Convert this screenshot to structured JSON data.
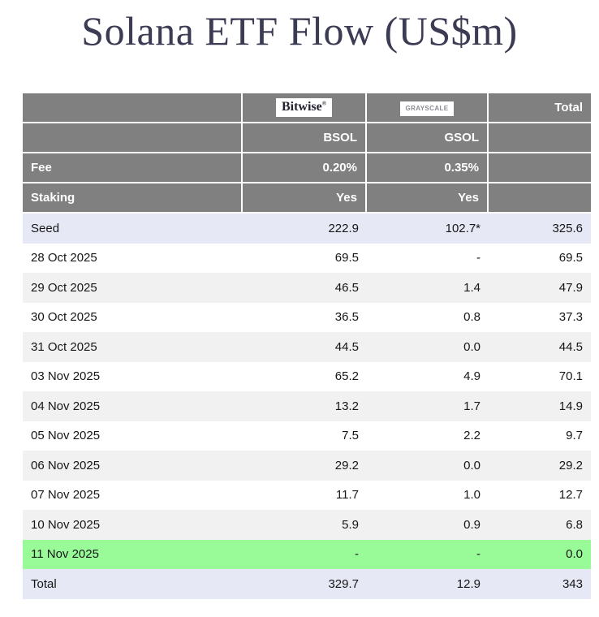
{
  "title": "Solana ETF Flow (US$m)",
  "colors": {
    "title-text": "#3b3b54",
    "header-bg": "#808080",
    "header-text": "#ffffff",
    "body-text": "#161616",
    "row-lavender": "#e7e8f5",
    "row-stripe": "#f1f1f2",
    "row-green": "#98fb98",
    "bitwise-logo-text": "#222230",
    "grayscale-logo-text": "#8b8b95"
  },
  "table": {
    "header": {
      "bitwise_logo": "Bitwise",
      "bitwise_mark": "®",
      "grayscale_logo": "GRAYSCALE",
      "total_label": "Total",
      "bitwise_ticker": "BSOL",
      "grayscale_ticker": "GSOL",
      "fee_label": "Fee",
      "fee_bitwise": "0.20%",
      "fee_grayscale": "0.35%",
      "staking_label": "Staking",
      "staking_bitwise": "Yes",
      "staking_grayscale": "Yes"
    },
    "rows": [
      {
        "label": "Seed",
        "bsol": "222.9",
        "gsol": "102.7*",
        "total": "325.6",
        "bg": "lavender"
      },
      {
        "label": "28 Oct 2025",
        "bsol": "69.5",
        "gsol": "-",
        "total": "69.5",
        "bg": "white"
      },
      {
        "label": "29 Oct 2025",
        "bsol": "46.5",
        "gsol": "1.4",
        "total": "47.9",
        "bg": "stripe"
      },
      {
        "label": "30 Oct 2025",
        "bsol": "36.5",
        "gsol": "0.8",
        "total": "37.3",
        "bg": "white"
      },
      {
        "label": "31 Oct 2025",
        "bsol": "44.5",
        "gsol": "0.0",
        "total": "44.5",
        "bg": "stripe"
      },
      {
        "label": "03 Nov 2025",
        "bsol": "65.2",
        "gsol": "4.9",
        "total": "70.1",
        "bg": "white"
      },
      {
        "label": "04 Nov 2025",
        "bsol": "13.2",
        "gsol": "1.7",
        "total": "14.9",
        "bg": "stripe"
      },
      {
        "label": "05 Nov 2025",
        "bsol": "7.5",
        "gsol": "2.2",
        "total": "9.7",
        "bg": "white"
      },
      {
        "label": "06 Nov 2025",
        "bsol": "29.2",
        "gsol": "0.0",
        "total": "29.2",
        "bg": "stripe"
      },
      {
        "label": "07 Nov 2025",
        "bsol": "11.7",
        "gsol": "1.0",
        "total": "12.7",
        "bg": "white"
      },
      {
        "label": "10 Nov 2025",
        "bsol": "5.9",
        "gsol": "0.9",
        "total": "6.8",
        "bg": "stripe"
      },
      {
        "label": "11 Nov 2025",
        "bsol": "-",
        "gsol": "-",
        "total": "0.0",
        "bg": "green"
      },
      {
        "label": "Total",
        "bsol": "329.7",
        "gsol": "12.9",
        "total": "343",
        "bg": "lavender"
      }
    ]
  },
  "chart_data": {
    "type": "table",
    "title": "Solana ETF Flow (US$m)",
    "columns": [
      "",
      "Bitwise BSOL",
      "Grayscale GSOL",
      "Total"
    ],
    "fee": {
      "bsol": "0.20%",
      "gsol": "0.35%"
    },
    "staking": {
      "bsol": "Yes",
      "gsol": "Yes"
    },
    "categories": [
      "Seed",
      "28 Oct 2025",
      "29 Oct 2025",
      "30 Oct 2025",
      "31 Oct 2025",
      "03 Nov 2025",
      "04 Nov 2025",
      "05 Nov 2025",
      "06 Nov 2025",
      "07 Nov 2025",
      "10 Nov 2025",
      "11 Nov 2025",
      "Total"
    ],
    "series": [
      {
        "name": "Bitwise BSOL",
        "values": [
          222.9,
          69.5,
          46.5,
          36.5,
          44.5,
          65.2,
          13.2,
          7.5,
          29.2,
          11.7,
          5.9,
          null,
          329.7
        ]
      },
      {
        "name": "Grayscale GSOL",
        "values": [
          102.7,
          null,
          1.4,
          0.8,
          0.0,
          4.9,
          1.7,
          2.2,
          0.0,
          1.0,
          0.9,
          null,
          12.9
        ]
      },
      {
        "name": "Total",
        "values": [
          325.6,
          69.5,
          47.9,
          37.3,
          44.5,
          70.1,
          14.9,
          9.7,
          29.2,
          12.7,
          6.8,
          0.0,
          343
        ]
      }
    ],
    "notes": [
      "102.7 seed value for GSOL is marked with an asterisk",
      "11 Nov 2025 row highlighted green (latest day)"
    ]
  }
}
